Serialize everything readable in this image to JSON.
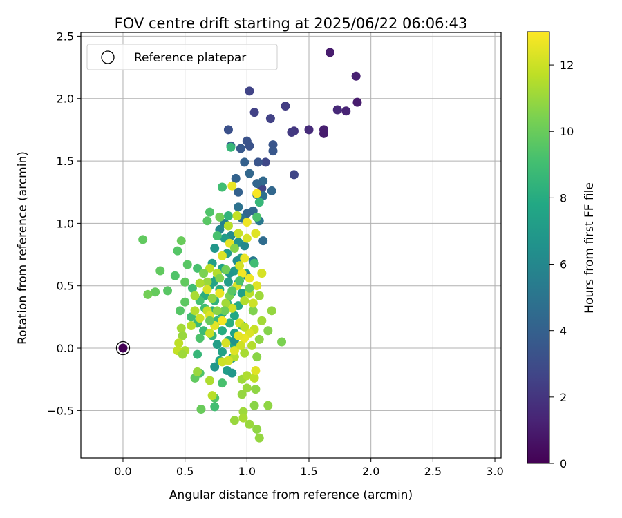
{
  "chart_data": {
    "type": "scatter",
    "title": "FOV centre drift starting at 2025/06/22 06:06:43",
    "xlabel": "Angular distance from reference (arcmin)",
    "ylabel": "Rotation from reference (arcmin)",
    "xlim": [
      -0.34,
      3.05
    ],
    "ylim": [
      -0.88,
      2.53
    ],
    "x_ticks": [
      "0.0",
      "0.5",
      "1.0",
      "1.5",
      "2.0",
      "2.5",
      "3.0"
    ],
    "y_ticks": [
      "−0.5",
      "0.0",
      "0.5",
      "1.0",
      "1.5",
      "2.0",
      "2.5"
    ],
    "grid": true,
    "legend": {
      "position": "top-left",
      "entries": [
        "Reference platepar"
      ]
    },
    "colorbar": {
      "label": "Hours from first FF file",
      "colormap": "viridis",
      "range": [
        0,
        13
      ],
      "ticks": [
        "0",
        "2",
        "4",
        "6",
        "8",
        "10",
        "12"
      ]
    },
    "reference_point": {
      "x": 0.0,
      "y": 0.0
    },
    "points": [
      [
        0.0,
        0.0,
        0.0
      ],
      [
        1.67,
        2.37,
        1.0
      ],
      [
        1.88,
        2.18,
        1.2
      ],
      [
        1.89,
        1.97,
        1.0
      ],
      [
        1.73,
        1.91,
        1.5
      ],
      [
        1.8,
        1.9,
        1.3
      ],
      [
        1.62,
        1.75,
        1.1
      ],
      [
        1.62,
        1.72,
        1.0
      ],
      [
        1.5,
        1.75,
        1.6
      ],
      [
        1.38,
        1.74,
        2.0
      ],
      [
        1.36,
        1.73,
        2.2
      ],
      [
        1.31,
        1.94,
        2.3
      ],
      [
        1.06,
        1.89,
        2.5
      ],
      [
        1.02,
        2.06,
        2.6
      ],
      [
        1.19,
        1.84,
        2.5
      ],
      [
        1.38,
        1.39,
        2.7
      ],
      [
        1.15,
        1.49,
        2.8
      ],
      [
        1.12,
        1.28,
        2.6
      ],
      [
        0.85,
        1.75,
        3.2
      ],
      [
        1.0,
        1.66,
        3.3
      ],
      [
        1.02,
        1.62,
        3.3
      ],
      [
        1.21,
        1.63,
        3.4
      ],
      [
        1.21,
        1.58,
        3.5
      ],
      [
        0.87,
        1.62,
        3.8
      ],
      [
        0.95,
        1.6,
        3.6
      ],
      [
        1.09,
        1.49,
        3.4
      ],
      [
        0.98,
        1.49,
        4.0
      ],
      [
        1.02,
        1.4,
        4.3
      ],
      [
        0.91,
        1.36,
        4.1
      ],
      [
        1.13,
        1.34,
        4.4
      ],
      [
        1.08,
        1.32,
        4.2
      ],
      [
        1.2,
        1.26,
        4.3
      ],
      [
        0.93,
        1.25,
        4.0
      ],
      [
        1.08,
        1.23,
        4.6
      ],
      [
        1.13,
        1.22,
        4.8
      ],
      [
        1.05,
        1.1,
        4.4
      ],
      [
        0.93,
        1.13,
        4.9
      ],
      [
        1.0,
        1.08,
        4.2
      ],
      [
        0.96,
        1.04,
        5.0
      ],
      [
        1.13,
        0.86,
        4.6
      ],
      [
        1.1,
        1.02,
        5.2
      ],
      [
        0.82,
        1.0,
        5.6
      ],
      [
        0.78,
        0.95,
        6.0
      ],
      [
        0.87,
        0.9,
        6.3
      ],
      [
        0.93,
        0.85,
        6.6
      ],
      [
        0.98,
        0.82,
        6.1
      ],
      [
        0.74,
        0.8,
        6.8
      ],
      [
        0.84,
        0.76,
        7.1
      ],
      [
        0.95,
        0.72,
        6.9
      ],
      [
        1.05,
        0.7,
        5.3
      ],
      [
        0.72,
        0.68,
        7.3
      ],
      [
        0.8,
        0.64,
        7.5
      ],
      [
        0.9,
        0.62,
        7.0
      ],
      [
        0.99,
        0.6,
        7.4
      ],
      [
        0.76,
        0.56,
        7.6
      ],
      [
        0.85,
        0.53,
        7.2
      ],
      [
        0.93,
        0.52,
        6.5
      ],
      [
        0.7,
        0.5,
        7.8
      ],
      [
        0.78,
        0.47,
        8.0
      ],
      [
        0.88,
        0.45,
        7.7
      ],
      [
        0.96,
        0.44,
        7.3
      ],
      [
        0.66,
        0.42,
        8.1
      ],
      [
        0.74,
        0.38,
        8.4
      ],
      [
        0.84,
        0.36,
        8.2
      ],
      [
        0.93,
        0.34,
        7.9
      ],
      [
        0.72,
        0.3,
        8.3
      ],
      [
        0.8,
        0.28,
        8.0
      ],
      [
        0.9,
        0.26,
        7.8
      ],
      [
        0.76,
        0.22,
        8.6
      ],
      [
        0.86,
        0.2,
        8.2
      ],
      [
        0.96,
        0.18,
        7.6
      ],
      [
        0.8,
        0.14,
        8.0
      ],
      [
        0.9,
        0.12,
        7.5
      ],
      [
        0.72,
        0.1,
        8.5
      ],
      [
        0.85,
        0.06,
        7.9
      ],
      [
        0.76,
        0.03,
        7.3
      ],
      [
        0.9,
        0.02,
        7.8
      ],
      [
        0.8,
        -0.03,
        7.4
      ],
      [
        0.88,
        -0.08,
        7.0
      ],
      [
        0.78,
        -0.1,
        7.6
      ],
      [
        0.74,
        -0.15,
        6.8
      ],
      [
        0.84,
        -0.18,
        7.2
      ],
      [
        0.88,
        -0.2,
        6.9
      ],
      [
        0.9,
        0.06,
        6.6
      ],
      [
        0.86,
        0.6,
        6.7
      ],
      [
        0.73,
        0.53,
        7.5
      ],
      [
        0.82,
        0.88,
        7.1
      ],
      [
        0.92,
        0.7,
        6.4
      ],
      [
        1.0,
        0.58,
        6.2
      ],
      [
        0.85,
        1.06,
        8.4
      ],
      [
        0.8,
        1.29,
        9.0
      ],
      [
        0.87,
        1.61,
        8.6
      ],
      [
        1.1,
        1.17,
        8.6
      ],
      [
        1.08,
        1.05,
        9.3
      ],
      [
        0.7,
        1.09,
        9.4
      ],
      [
        0.68,
        1.02,
        9.6
      ],
      [
        0.76,
        0.9,
        9.2
      ],
      [
        0.16,
        0.87,
        9.8
      ],
      [
        0.47,
        0.86,
        10.0
      ],
      [
        0.44,
        0.78,
        9.5
      ],
      [
        0.3,
        0.62,
        9.8
      ],
      [
        0.52,
        0.67,
        9.6
      ],
      [
        0.6,
        0.64,
        9.2
      ],
      [
        0.26,
        0.45,
        9.9
      ],
      [
        0.2,
        0.43,
        10.2
      ],
      [
        0.42,
        0.58,
        9.4
      ],
      [
        0.5,
        0.53,
        9.8
      ],
      [
        0.56,
        0.48,
        9.0
      ],
      [
        0.36,
        0.46,
        9.6
      ],
      [
        0.5,
        0.37,
        9.7
      ],
      [
        0.62,
        0.38,
        9.1
      ],
      [
        0.46,
        0.3,
        9.5
      ],
      [
        0.66,
        0.32,
        8.9
      ],
      [
        0.55,
        0.25,
        9.0
      ],
      [
        0.6,
        0.2,
        8.7
      ],
      [
        0.65,
        0.14,
        8.8
      ],
      [
        0.62,
        0.08,
        9.3
      ],
      [
        0.6,
        -0.05,
        8.6
      ],
      [
        0.62,
        -0.2,
        9.4
      ],
      [
        0.58,
        -0.24,
        9.8
      ],
      [
        0.74,
        -0.4,
        9.4
      ],
      [
        0.74,
        -0.47,
        9.0
      ],
      [
        0.8,
        -0.28,
        9.2
      ],
      [
        0.63,
        -0.49,
        10.0
      ],
      [
        0.72,
        -0.38,
        11.6
      ],
      [
        0.7,
        -0.26,
        11.4
      ],
      [
        0.9,
        -0.58,
        11.0
      ],
      [
        0.97,
        -0.51,
        11.1
      ],
      [
        0.97,
        -0.56,
        11.3
      ],
      [
        1.02,
        -0.61,
        11.0
      ],
      [
        1.08,
        -0.65,
        10.8
      ],
      [
        1.1,
        -0.72,
        10.9
      ],
      [
        0.96,
        -0.37,
        10.9
      ],
      [
        1.0,
        -0.32,
        11.0
      ],
      [
        1.07,
        -0.33,
        10.8
      ],
      [
        1.06,
        -0.46,
        10.7
      ],
      [
        1.17,
        -0.46,
        10.8
      ],
      [
        0.96,
        -0.25,
        11.1
      ],
      [
        1.0,
        -0.22,
        11.4
      ],
      [
        1.06,
        -0.24,
        11.7
      ],
      [
        1.07,
        -0.18,
        12.4
      ],
      [
        1.08,
        -0.07,
        10.7
      ],
      [
        0.98,
        -0.04,
        11.3
      ],
      [
        0.9,
        -0.07,
        11.5
      ],
      [
        0.85,
        -0.1,
        12.1
      ],
      [
        1.28,
        0.05,
        10.4
      ],
      [
        1.1,
        0.07,
        10.8
      ],
      [
        1.17,
        0.14,
        10.6
      ],
      [
        1.2,
        0.3,
        10.9
      ],
      [
        1.12,
        0.22,
        11.2
      ],
      [
        1.05,
        0.3,
        10.5
      ],
      [
        1.06,
        0.15,
        11.9
      ],
      [
        1.02,
        0.12,
        12.3
      ],
      [
        0.98,
        0.08,
        12.6
      ],
      [
        0.93,
        0.1,
        12.5
      ],
      [
        0.94,
        0.2,
        12.2
      ],
      [
        0.98,
        0.17,
        11.7
      ],
      [
        1.05,
        0.36,
        12.0
      ],
      [
        0.98,
        0.38,
        11.5
      ],
      [
        1.02,
        0.44,
        11.6
      ],
      [
        1.1,
        0.42,
        11.1
      ],
      [
        1.08,
        0.5,
        12.4
      ],
      [
        1.02,
        0.56,
        12.7
      ],
      [
        0.96,
        0.6,
        12.8
      ],
      [
        0.92,
        0.5,
        12.3
      ],
      [
        1.12,
        0.6,
        12.2
      ],
      [
        0.94,
        0.66,
        12.1
      ],
      [
        0.98,
        0.72,
        12.6
      ],
      [
        0.8,
        0.74,
        12.3
      ],
      [
        0.86,
        0.84,
        12.5
      ],
      [
        0.93,
        0.92,
        11.9
      ],
      [
        1.0,
        0.88,
        12.2
      ],
      [
        1.07,
        0.92,
        12.4
      ],
      [
        0.85,
        0.98,
        11.6
      ],
      [
        0.92,
        1.06,
        11.8
      ],
      [
        1.0,
        1.01,
        12.7
      ],
      [
        1.08,
        1.24,
        12.9
      ],
      [
        0.88,
        1.3,
        12.6
      ],
      [
        0.68,
        0.53,
        11.0
      ],
      [
        0.58,
        0.42,
        11.3
      ],
      [
        0.58,
        0.3,
        11.5
      ],
      [
        0.62,
        0.24,
        12.0
      ],
      [
        0.68,
        0.3,
        11.8
      ],
      [
        0.7,
        0.26,
        12.3
      ],
      [
        0.55,
        0.18,
        11.6
      ],
      [
        0.47,
        0.16,
        11.2
      ],
      [
        0.48,
        0.1,
        11.0
      ],
      [
        0.45,
        0.04,
        11.7
      ],
      [
        0.5,
        -0.02,
        11.4
      ],
      [
        0.44,
        -0.02,
        11.8
      ],
      [
        0.48,
        -0.05,
        11.1
      ],
      [
        0.6,
        -0.19,
        11.0
      ],
      [
        0.7,
        0.12,
        11.9
      ],
      [
        0.74,
        0.18,
        12.5
      ],
      [
        0.8,
        0.22,
        12.8
      ],
      [
        0.78,
        0.44,
        12.6
      ],
      [
        0.68,
        0.47,
        12.2
      ],
      [
        0.62,
        0.52,
        11.4
      ],
      [
        0.7,
        0.64,
        11.7
      ],
      [
        0.76,
        0.6,
        11.5
      ],
      [
        0.8,
        -0.11,
        12.0
      ],
      [
        0.9,
        -0.02,
        12.4
      ],
      [
        0.95,
        0.02,
        12.0
      ],
      [
        1.04,
        0.02,
        11.5
      ],
      [
        0.83,
        0.04,
        12.2
      ],
      [
        0.88,
        0.32,
        12.0
      ],
      [
        0.83,
        0.36,
        11.2
      ],
      [
        0.72,
        0.4,
        10.8
      ],
      [
        0.65,
        0.6,
        10.4
      ],
      [
        0.9,
        0.8,
        10.6
      ],
      [
        0.83,
        0.63,
        10.2
      ],
      [
        0.78,
        0.56,
        10.5
      ],
      [
        0.86,
        0.42,
        10.3
      ],
      [
        0.82,
        0.3,
        10.1
      ],
      [
        0.76,
        0.3,
        10.7
      ],
      [
        0.7,
        0.22,
        10.0
      ],
      [
        0.88,
        0.46,
        9.6
      ],
      [
        0.94,
        0.54,
        9.3
      ],
      [
        1.02,
        0.48,
        9.9
      ],
      [
        1.06,
        0.68,
        9.0
      ],
      [
        0.78,
        1.05,
        10.2
      ]
    ]
  }
}
